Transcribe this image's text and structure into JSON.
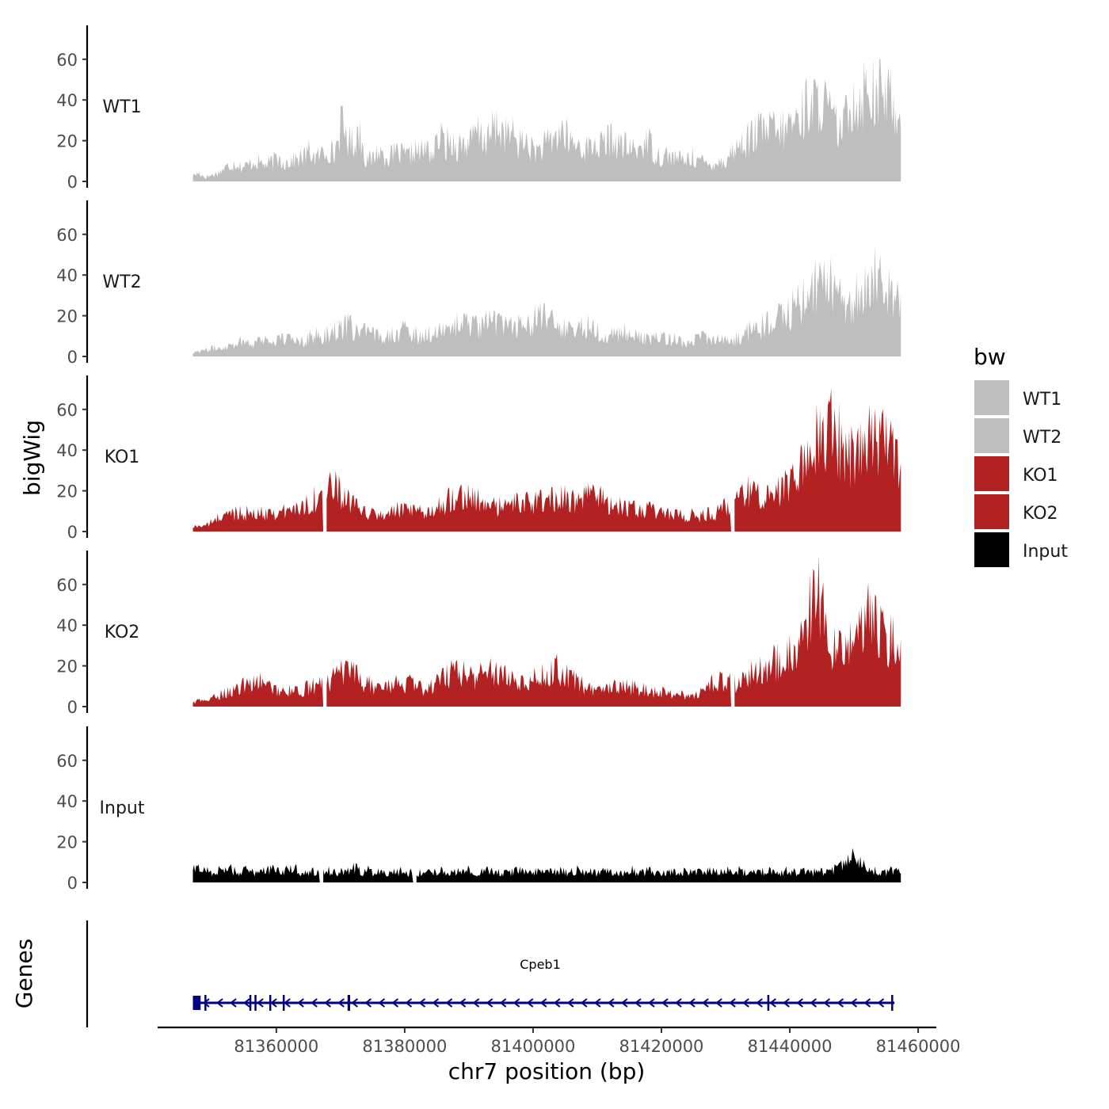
{
  "chart_data": {
    "type": "area",
    "title": "",
    "xlabel": "chr7 position (bp)",
    "ylabel": "bigWig",
    "genes_label": "Genes",
    "x_range": [
      81347000,
      81457300
    ],
    "x_ticks": [
      81360000,
      81380000,
      81400000,
      81420000,
      81440000,
      81460000
    ],
    "x_tick_labels": [
      "81360000",
      "81380000",
      "81400000",
      "81420000",
      "81440000",
      "81460000"
    ],
    "ylim": [
      0,
      76
    ],
    "y_ticks": [
      0,
      20,
      40,
      60
    ],
    "y_tick_labels": [
      "0",
      "20",
      "40",
      "60"
    ],
    "legend": {
      "title": "bw",
      "position": "right",
      "entries": [
        {
          "label": "WT1",
          "color": "#bebebe"
        },
        {
          "label": "WT2",
          "color": "#bebebe"
        },
        {
          "label": "KO1",
          "color": "#b22222"
        },
        {
          "label": "KO2",
          "color": "#b22222"
        },
        {
          "label": "Input",
          "color": "#000000"
        }
      ]
    },
    "series": [
      {
        "name": "WT1",
        "color": "#bebebe",
        "gaps": [],
        "values": [
          3,
          4,
          2,
          3,
          4,
          6,
          8,
          9,
          7,
          8,
          10,
          9,
          8,
          10,
          11,
          9,
          10,
          11,
          12,
          15,
          11,
          14,
          16,
          13,
          28,
          22,
          18,
          25,
          12,
          10,
          15,
          13,
          12,
          14,
          13,
          12,
          15,
          14,
          16,
          13,
          22,
          18,
          20,
          17,
          19,
          18,
          24,
          22,
          20,
          27,
          25,
          23,
          22,
          18,
          20,
          16,
          15,
          17,
          19,
          22,
          25,
          20,
          18,
          17,
          16,
          18,
          17,
          19,
          21,
          18,
          17,
          16,
          15,
          18,
          20,
          14,
          12,
          13,
          12,
          11,
          10,
          12,
          11,
          9,
          8,
          10,
          9,
          12,
          16,
          18,
          20,
          22,
          25,
          24,
          26,
          23,
          25,
          28,
          30,
          33,
          40,
          36,
          42,
          35,
          30,
          24,
          30,
          43,
          38,
          45,
          48,
          40,
          44,
          42,
          36,
          30
        ]
      },
      {
        "name": "WT2",
        "color": "#bebebe",
        "gaps": [],
        "values": [
          2,
          3,
          3,
          4,
          4,
          5,
          6,
          7,
          8,
          6,
          8,
          9,
          7,
          8,
          9,
          8,
          9,
          8,
          10,
          10,
          9,
          12,
          13,
          14,
          15,
          13,
          12,
          11,
          10,
          10,
          12,
          11,
          13,
          12,
          11,
          10,
          11,
          12,
          13,
          11,
          15,
          16,
          17,
          15,
          14,
          15,
          17,
          16,
          18,
          16,
          15,
          17,
          16,
          18,
          19,
          17,
          15,
          14,
          13,
          15,
          14,
          16,
          13,
          12,
          11,
          10,
          12,
          11,
          10,
          9,
          8,
          10,
          9,
          8,
          9,
          8,
          7,
          8,
          9,
          10,
          9,
          8,
          7,
          8,
          9,
          11,
          13,
          14,
          15,
          17,
          18,
          20,
          22,
          25,
          27,
          30,
          35,
          32,
          38,
          33,
          28,
          24,
          28,
          35,
          30,
          38,
          36,
          34,
          30,
          26
        ]
      },
      {
        "name": "KO1",
        "color": "#b22222",
        "gaps": [
          [
            81367300,
            81367800
          ],
          [
            81430800,
            81431300
          ]
        ],
        "values": [
          2,
          3,
          3,
          5,
          7,
          8,
          9,
          10,
          9,
          8,
          9,
          9,
          10,
          9,
          10,
          11,
          12,
          14,
          16,
          18,
          20,
          21,
          19,
          15,
          12,
          10,
          9,
          8,
          8,
          9,
          10,
          11,
          10,
          9,
          9,
          10,
          12,
          14,
          16,
          18,
          19,
          17,
          15,
          14,
          13,
          12,
          12,
          13,
          14,
          13,
          15,
          14,
          15,
          16,
          17,
          16,
          15,
          14,
          16,
          17,
          18,
          16,
          14,
          13,
          12,
          11,
          10,
          10,
          11,
          9,
          8,
          9,
          8,
          7,
          8,
          7,
          8,
          9,
          10,
          12,
          14,
          16,
          18,
          22,
          20,
          18,
          19,
          21,
          24,
          26,
          30,
          34,
          40,
          48,
          52,
          50,
          44,
          40,
          36,
          38,
          42,
          46,
          44,
          40,
          38,
          36
        ]
      },
      {
        "name": "KO2",
        "color": "#b22222",
        "gaps": [
          [
            81367300,
            81367800
          ],
          [
            81430800,
            81431300
          ]
        ],
        "values": [
          2,
          3,
          3,
          4,
          6,
          7,
          8,
          9,
          11,
          13,
          12,
          10,
          9,
          8,
          8,
          7,
          8,
          9,
          10,
          11,
          12,
          14,
          16,
          17,
          15,
          13,
          11,
          10,
          9,
          10,
          11,
          12,
          11,
          10,
          9,
          10,
          12,
          14,
          16,
          18,
          17,
          15,
          14,
          16,
          17,
          18,
          17,
          15,
          13,
          12,
          14,
          15,
          16,
          17,
          18,
          16,
          14,
          12,
          10,
          8,
          7,
          8,
          9,
          10,
          11,
          10,
          9,
          8,
          7,
          8,
          7,
          6,
          7,
          6,
          5,
          6,
          10,
          12,
          13,
          12,
          11,
          12,
          14,
          16,
          18,
          20,
          21,
          22,
          24,
          26,
          30,
          34,
          58,
          56,
          38,
          30,
          26,
          30,
          38,
          40,
          44,
          42,
          38,
          34,
          30,
          25
        ]
      },
      {
        "name": "Input",
        "color": "#000000",
        "gaps": [
          [
            81366700,
            81367200
          ],
          [
            81381300,
            81381800
          ]
        ],
        "values": [
          6,
          7,
          6,
          5,
          6,
          7,
          6,
          5,
          6,
          5,
          6,
          7,
          6,
          5,
          6,
          7,
          5,
          6,
          5,
          5,
          6,
          5,
          5,
          6,
          7,
          5,
          6,
          5,
          6,
          5,
          5,
          6,
          5,
          5,
          5,
          6,
          5,
          6,
          5,
          5,
          5,
          6,
          5,
          5,
          6,
          5,
          5,
          5,
          6,
          5,
          5,
          5,
          6,
          5,
          6,
          5,
          5,
          6,
          5,
          5,
          5,
          6,
          5,
          5,
          5,
          6,
          5,
          5,
          6,
          5,
          5,
          5,
          6,
          5,
          5,
          5,
          6,
          5,
          5,
          6,
          5,
          6,
          5,
          5,
          5,
          6,
          5,
          5,
          6,
          5,
          5,
          6,
          5,
          6,
          5,
          6,
          7,
          10,
          12,
          9,
          7,
          6,
          5,
          5,
          6,
          5
        ]
      }
    ],
    "tracks": [
      {
        "name": "WT1",
        "label": "WT1"
      },
      {
        "name": "WT2",
        "label": "WT2"
      },
      {
        "name": "KO1",
        "label": "KO1"
      },
      {
        "name": "KO2",
        "label": "KO2"
      },
      {
        "name": "Input",
        "label": "Input"
      }
    ],
    "gene": {
      "name": "Cpeb1",
      "color": "#000080",
      "strand": "-",
      "start": 81347000,
      "end": 81456300,
      "exons": [
        [
          81347000,
          81348200
        ],
        [
          81348800,
          81349100
        ],
        [
          81355800,
          81356000
        ],
        [
          81356600,
          81356800
        ],
        [
          81358900,
          81359100
        ],
        [
          81361000,
          81361200
        ],
        [
          81371100,
          81371500
        ],
        [
          81436500,
          81436700
        ],
        [
          81455800,
          81456000
        ]
      ]
    }
  }
}
